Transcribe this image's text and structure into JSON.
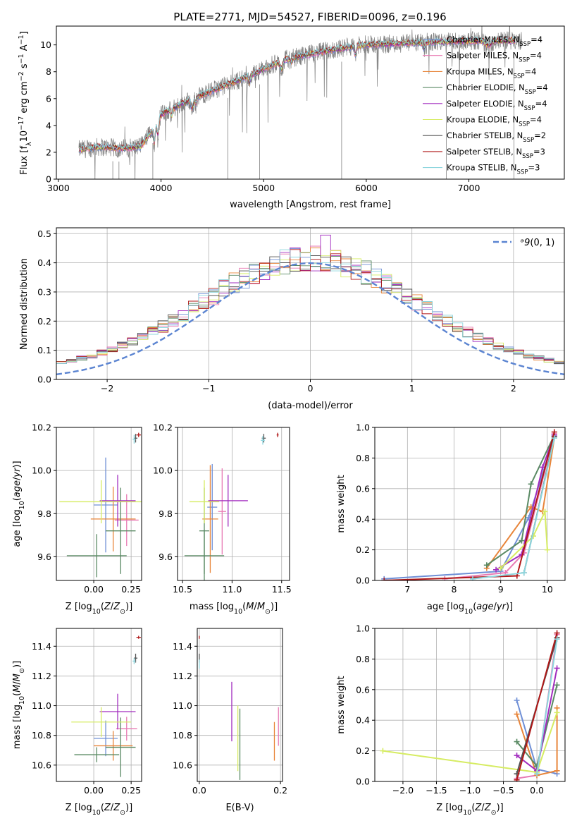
{
  "figure": {
    "title": "PLATE=2771, MJD=54527, FIBERID=0096, z=0.196"
  },
  "colors": {
    "chabrier_miles": "#6f8fd6",
    "salpeter_miles": "#e87ab3",
    "kroupa_miles": "#e8853a",
    "chabrier_elodie": "#5a8a64",
    "salpeter_elodie": "#a22cbf",
    "kroupa_elodie": "#d6ec62",
    "chabrier_stelib": "#555555",
    "salpeter_stelib": "#b01818",
    "kroupa_stelib": "#8ed6de",
    "data": "#808080",
    "normal": "#5b84d1"
  },
  "legend_items": [
    {
      "key": "chabrier_miles",
      "pre": "Chabrier MILES, N",
      "sub": "SSP",
      "post": "=4"
    },
    {
      "key": "salpeter_miles",
      "pre": "Salpeter MILES, N",
      "sub": "SSP",
      "post": "=4"
    },
    {
      "key": "kroupa_miles",
      "pre": "Kroupa MILES, N",
      "sub": "SSP",
      "post": "=4"
    },
    {
      "key": "chabrier_elodie",
      "pre": "Chabrier ELODIE, N",
      "sub": "SSP",
      "post": "=4"
    },
    {
      "key": "salpeter_elodie",
      "pre": "Salpeter ELODIE, N",
      "sub": "SSP",
      "post": "=4"
    },
    {
      "key": "kroupa_elodie",
      "pre": "Kroupa ELODIE, N",
      "sub": "SSP",
      "post": "=4"
    },
    {
      "key": "chabrier_stelib",
      "pre": "Chabrier STELIB, N",
      "sub": "SSP",
      "post": "=2"
    },
    {
      "key": "salpeter_stelib",
      "pre": "Salpeter STELIB, N",
      "sub": "SSP",
      "post": "=3"
    },
    {
      "key": "kroupa_stelib",
      "pre": "Kroupa STELIB, N",
      "sub": "SSP",
      "post": "=3"
    }
  ],
  "chart_data": [
    {
      "id": "spectrum",
      "type": "line",
      "xlabel": "wavelength [Angstrom, rest frame]",
      "ylabel": "Flux [f_λ 10^-17 erg cm^-2 s^-1 A^-1]",
      "xlim": [
        2980,
        7930
      ],
      "ylim": [
        0,
        11.4
      ],
      "xticks": [
        3000,
        4000,
        5000,
        6000,
        7000
      ],
      "yticks": [
        0,
        2,
        4,
        6,
        8,
        10
      ],
      "grid": false,
      "legend": "upper right",
      "continuum": {
        "x": [
          3200,
          3400,
          3600,
          3800,
          3950,
          4000,
          4200,
          4500,
          4800,
          5000,
          5200,
          5500,
          5800,
          6000,
          6300,
          6600,
          7000,
          7300,
          7500
        ],
        "y": [
          2.2,
          2.4,
          2.3,
          2.4,
          4.0,
          4.8,
          5.6,
          6.6,
          7.5,
          8.2,
          8.9,
          9.4,
          9.8,
          10.0,
          10.1,
          10.2,
          10.3,
          10.35,
          10.3
        ]
      },
      "data_range": [
        3200,
        7520
      ],
      "model_range": [
        3200,
        7450
      ]
    },
    {
      "id": "residuals",
      "type": "histogram",
      "xlabel": "(data-model)/error",
      "ylabel": "Normed distribution",
      "xlim": [
        -2.5,
        2.5
      ],
      "ylim": [
        0,
        0.52
      ],
      "xticks": [
        -2,
        -1,
        0,
        1,
        2
      ],
      "yticks": [
        0,
        0.1,
        0.2,
        0.3,
        0.4,
        0.5
      ],
      "grid": true,
      "legend": "upper right",
      "legend_label": "N(0,1)",
      "bin_width": 0.1
    },
    {
      "id": "age_vs_Z",
      "type": "scatter",
      "xlabel": "Z [log10(Z/Z⊙)]",
      "ylabel": "age [log10(age/yr)]",
      "xlim": [
        -0.25,
        0.32
      ],
      "ylim": [
        9.49,
        10.2
      ],
      "xticks": [
        0.0,
        0.25
      ],
      "yticks": [
        9.6,
        9.8,
        10.0,
        10.2
      ],
      "grid": true,
      "points": [
        {
          "c": "chabrier_miles",
          "x": 0.08,
          "y": 9.84,
          "xerr": [
            0.08,
            0.08
          ],
          "yerr": [
            0.22,
            0.22
          ]
        },
        {
          "c": "salpeter_miles",
          "x": 0.22,
          "y": 9.77,
          "xerr": [
            0.08,
            0.08
          ],
          "yerr": [
            0.12,
            0.12
          ]
        },
        {
          "c": "kroupa_miles",
          "x": 0.13,
          "y": 9.775,
          "xerr": [
            0.15,
            0.15
          ],
          "yerr": [
            0.15,
            0.15
          ]
        },
        {
          "c": "chabrier_elodie",
          "x": 0.18,
          "y": 9.72,
          "xerr": [
            0.1,
            0.1
          ],
          "yerr": [
            0.2,
            0.2
          ]
        },
        {
          "c": "salpeter_elodie",
          "x": 0.16,
          "y": 9.86,
          "xerr": [
            0.12,
            0.12
          ],
          "yerr": [
            0.12,
            0.12
          ]
        },
        {
          "c": "kroupa_elodie",
          "x": 0.05,
          "y": 9.855,
          "xerr": [
            0.28,
            0.28
          ],
          "yerr": [
            0.1,
            0.1
          ]
        },
        {
          "c": "chabrier_elodie",
          "x": 0.02,
          "y": 9.605,
          "xerr": [
            0.2,
            0.2
          ],
          "yerr": [
            0.1,
            0.1
          ]
        },
        {
          "c": "chabrier_stelib",
          "x": 0.28,
          "y": 10.15,
          "xerr": [
            0.012,
            0.012
          ],
          "yerr": [
            0.02,
            0.02
          ]
        },
        {
          "c": "salpeter_stelib",
          "x": 0.3,
          "y": 10.165,
          "xerr": [
            0.015,
            0.015
          ],
          "yerr": [
            0.01,
            0.01
          ]
        },
        {
          "c": "kroupa_stelib",
          "x": 0.27,
          "y": 10.145,
          "xerr": [
            0.01,
            0.01
          ],
          "yerr": [
            0.02,
            0.02
          ]
        }
      ]
    },
    {
      "id": "age_vs_mass",
      "type": "scatter",
      "xlabel": "mass [log10(M/M⊙)]",
      "ylabel": "",
      "xlim": [
        10.45,
        11.58
      ],
      "ylim": [
        9.49,
        10.2
      ],
      "xticks": [
        10.5,
        11.0,
        11.5
      ],
      "yticks": [
        9.6,
        9.8,
        10.0,
        10.2
      ],
      "grid": true,
      "points": [
        {
          "c": "chabrier_miles",
          "x": 10.8,
          "y": 9.83,
          "xerr": [
            0.05,
            0.05
          ],
          "yerr": [
            0.2,
            0.2
          ]
        },
        {
          "c": "salpeter_miles",
          "x": 10.9,
          "y": 9.81,
          "xerr": [
            0.04,
            0.04
          ],
          "yerr": [
            0.2,
            0.2
          ]
        },
        {
          "c": "kroupa_miles",
          "x": 10.78,
          "y": 9.775,
          "xerr": [
            0.08,
            0.08
          ],
          "yerr": [
            0.25,
            0.25
          ]
        },
        {
          "c": "chabrier_elodie",
          "x": 10.72,
          "y": 9.72,
          "xerr": [
            0.05,
            0.05
          ],
          "yerr": [
            0.2,
            0.2
          ]
        },
        {
          "c": "salpeter_elodie",
          "x": 10.96,
          "y": 9.86,
          "xerr": [
            0.2,
            0.2
          ],
          "yerr": [
            0.12,
            0.12
          ]
        },
        {
          "c": "kroupa_elodie",
          "x": 10.72,
          "y": 9.855,
          "xerr": [
            0.15,
            0.15
          ],
          "yerr": [
            0.1,
            0.1
          ]
        },
        {
          "c": "chabrier_elodie",
          "x": 10.72,
          "y": 9.605,
          "xerr": [
            0.2,
            0.2
          ],
          "yerr": [
            0.12,
            0.12
          ]
        },
        {
          "c": "chabrier_stelib",
          "x": 11.32,
          "y": 10.15,
          "xerr": [
            0.02,
            0.02
          ],
          "yerr": [
            0.02,
            0.02
          ]
        },
        {
          "c": "salpeter_stelib",
          "x": 11.46,
          "y": 10.165,
          "xerr": [
            0.01,
            0.01
          ],
          "yerr": [
            0.01,
            0.01
          ]
        },
        {
          "c": "kroupa_stelib",
          "x": 11.31,
          "y": 10.14,
          "xerr": [
            0.02,
            0.02
          ],
          "yerr": [
            0.02,
            0.02
          ]
        }
      ]
    },
    {
      "id": "weight_vs_age",
      "type": "line",
      "xlabel": "age [log10(age/yr)]",
      "ylabel": "mass weight",
      "xlim": [
        6.3,
        10.38
      ],
      "ylim": [
        0,
        1.0
      ],
      "xticks": [
        7,
        8,
        9,
        10
      ],
      "yticks": [
        0,
        0.2,
        0.4,
        0.6,
        0.8,
        1.0
      ],
      "grid": true,
      "series": [
        {
          "c": "chabrier_miles",
          "x": [
            6.5,
            9.0,
            9.6,
            10.15
          ],
          "y": [
            0.01,
            0.06,
            0.41,
            0.94
          ]
        },
        {
          "c": "salpeter_miles",
          "x": [
            7.8,
            9.1,
            9.5,
            10.15
          ],
          "y": [
            0.01,
            0.05,
            0.18,
            0.96
          ]
        },
        {
          "c": "kroupa_miles",
          "x": [
            8.7,
            9.65,
            9.9,
            10.15
          ],
          "y": [
            0.08,
            0.48,
            0.45,
            0.93
          ]
        },
        {
          "c": "chabrier_elodie",
          "x": [
            8.7,
            9.45,
            9.65,
            10.15
          ],
          "y": [
            0.1,
            0.26,
            0.63,
            0.95
          ]
        },
        {
          "c": "salpeter_elodie",
          "x": [
            8.9,
            9.45,
            9.9,
            10.15
          ],
          "y": [
            0.07,
            0.17,
            0.74,
            0.95
          ]
        },
        {
          "c": "kroupa_elodie",
          "x": [
            9.0,
            9.7,
            9.95,
            10.0
          ],
          "y": [
            0.08,
            0.29,
            0.45,
            0.2
          ]
        },
        {
          "c": "chabrier_stelib",
          "x": [
            9.5,
            10.15
          ],
          "y": [
            0.05,
            0.94
          ]
        },
        {
          "c": "salpeter_stelib",
          "x": [
            6.5,
            9.35,
            10.15
          ],
          "y": [
            0.0,
            0.03,
            0.97
          ]
        },
        {
          "c": "kroupa_stelib",
          "x": [
            8.4,
            9.5,
            10.15
          ],
          "y": [
            0.01,
            0.05,
            0.93
          ]
        }
      ]
    },
    {
      "id": "mass_vs_Z",
      "type": "scatter",
      "xlabel": "Z [log10(Z/Z⊙)]",
      "ylabel": "mass [log10(M/M⊙)]",
      "xlim": [
        -0.25,
        0.32
      ],
      "ylim": [
        10.49,
        11.52
      ],
      "xticks": [
        0.0,
        0.25
      ],
      "yticks": [
        10.6,
        10.8,
        11.0,
        11.2,
        11.4
      ],
      "grid": true,
      "points": [
        {
          "c": "chabrier_miles",
          "x": 0.08,
          "y": 10.78,
          "xerr": [
            0.08,
            0.08
          ],
          "yerr": [
            0.12,
            0.12
          ]
        },
        {
          "c": "salpeter_miles",
          "x": 0.22,
          "y": 10.845,
          "xerr": [
            0.07,
            0.07
          ],
          "yerr": [
            0.08,
            0.08
          ]
        },
        {
          "c": "kroupa_miles",
          "x": 0.13,
          "y": 10.73,
          "xerr": [
            0.13,
            0.13
          ],
          "yerr": [
            0.1,
            0.1
          ]
        },
        {
          "c": "chabrier_elodie",
          "x": 0.18,
          "y": 10.72,
          "xerr": [
            0.1,
            0.1
          ],
          "yerr": [
            0.2,
            0.2
          ]
        },
        {
          "c": "salpeter_elodie",
          "x": 0.16,
          "y": 10.96,
          "xerr": [
            0.12,
            0.12
          ],
          "yerr": [
            0.12,
            0.12
          ]
        },
        {
          "c": "kroupa_elodie",
          "x": 0.05,
          "y": 10.89,
          "xerr": [
            0.2,
            0.2
          ],
          "yerr": [
            0.1,
            0.1
          ]
        },
        {
          "c": "chabrier_elodie",
          "x": 0.02,
          "y": 10.67,
          "xerr": [
            0.15,
            0.15
          ],
          "yerr": [
            0.05,
            0.05
          ]
        },
        {
          "c": "chabrier_stelib",
          "x": 0.28,
          "y": 11.32,
          "xerr": [
            0.012,
            0.012
          ],
          "yerr": [
            0.03,
            0.03
          ]
        },
        {
          "c": "salpeter_stelib",
          "x": 0.3,
          "y": 11.46,
          "xerr": [
            0.015,
            0.015
          ],
          "yerr": [
            0.01,
            0.01
          ]
        },
        {
          "c": "kroupa_stelib",
          "x": 0.27,
          "y": 11.3,
          "xerr": [
            0.01,
            0.01
          ],
          "yerr": [
            0.02,
            0.02
          ]
        }
      ]
    },
    {
      "id": "mass_vs_ebv",
      "type": "scatter",
      "xlabel": "E(B-V)",
      "ylabel": "",
      "xlim": [
        -0.005,
        0.205
      ],
      "ylim": [
        10.49,
        11.52
      ],
      "xticks": [
        0.0,
        0.2
      ],
      "yticks": [
        10.6,
        10.8,
        11.0,
        11.2,
        11.4
      ],
      "grid": true,
      "points": [
        {
          "c": "salpeter_elodie",
          "x": 0.08,
          "y": 10.96,
          "xerr": [
            0.0,
            0.0
          ],
          "yerr": [
            0.2,
            0.2
          ]
        },
        {
          "c": "kroupa_elodie",
          "x": 0.095,
          "y": 10.78,
          "xerr": [
            0.0,
            0.0
          ],
          "yerr": [
            0.22,
            0.22
          ]
        },
        {
          "c": "chabrier_elodie",
          "x": 0.1,
          "y": 10.74,
          "xerr": [
            0.0,
            0.0
          ],
          "yerr": [
            0.24,
            0.24
          ]
        },
        {
          "c": "kroupa_miles",
          "x": 0.185,
          "y": 10.76,
          "xerr": [
            0.0,
            0.0
          ],
          "yerr": [
            0.13,
            0.13
          ]
        },
        {
          "c": "salpeter_miles",
          "x": 0.195,
          "y": 10.86,
          "xerr": [
            0.0,
            0.0
          ],
          "yerr": [
            0.13,
            0.13
          ]
        },
        {
          "c": "chabrier_stelib",
          "x": 0.0,
          "y": 11.32,
          "xerr": [
            0.0,
            0.0
          ],
          "yerr": [
            0.03,
            0.03
          ]
        },
        {
          "c": "salpeter_stelib",
          "x": 0.0,
          "y": 11.46,
          "xerr": [
            0.0,
            0.0
          ],
          "yerr": [
            0.01,
            0.01
          ]
        },
        {
          "c": "kroupa_stelib",
          "x": 0.0,
          "y": 11.28,
          "xerr": [
            0.0,
            0.0
          ],
          "yerr": [
            0.03,
            0.03
          ]
        }
      ]
    },
    {
      "id": "weight_vs_Z",
      "type": "line",
      "xlabel": "Z [log10(Z/Z⊙)]",
      "ylabel": "mass weight",
      "xlim": [
        -2.42,
        0.42
      ],
      "ylim": [
        0,
        1.0
      ],
      "xticks": [
        -2.0,
        -1.5,
        -1.0,
        -0.5,
        0.0
      ],
      "yticks": [
        0,
        0.2,
        0.4,
        0.6,
        0.8,
        1.0
      ],
      "grid": true,
      "series": [
        {
          "c": "chabrier_miles",
          "x": [
            -0.3,
            0.0,
            0.3
          ],
          "y": [
            0.53,
            0.08,
            0.05
          ]
        },
        {
          "c": "salpeter_miles",
          "x": [
            -0.3,
            0.0,
            0.3
          ],
          "y": [
            0.02,
            0.04,
            0.96
          ]
        },
        {
          "c": "kroupa_miles",
          "x": [
            -0.3,
            0.0,
            0.3,
            0.3
          ],
          "y": [
            0.44,
            0.04,
            0.07,
            0.48
          ]
        },
        {
          "c": "chabrier_elodie",
          "x": [
            -0.3,
            0.0,
            0.3
          ],
          "y": [
            0.26,
            0.1,
            0.63
          ]
        },
        {
          "c": "salpeter_elodie",
          "x": [
            -0.3,
            0.0,
            0.3
          ],
          "y": [
            0.17,
            0.07,
            0.74
          ]
        },
        {
          "c": "kroupa_elodie",
          "x": [
            -2.3,
            0.0,
            0.3
          ],
          "y": [
            0.2,
            0.06,
            0.45
          ]
        },
        {
          "c": "chabrier_stelib",
          "x": [
            -0.3,
            0.3
          ],
          "y": [
            0.05,
            0.94
          ]
        },
        {
          "c": "salpeter_stelib",
          "x": [
            -0.3,
            0.3
          ],
          "y": [
            0.01,
            0.97
          ]
        },
        {
          "c": "kroupa_stelib",
          "x": [
            0.0,
            0.3
          ],
          "y": [
            0.05,
            0.93
          ]
        }
      ]
    }
  ]
}
